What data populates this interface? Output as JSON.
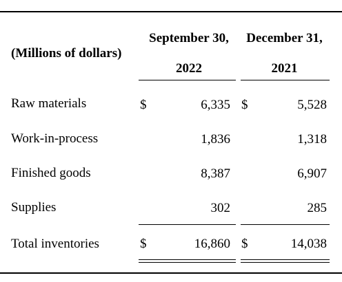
{
  "table": {
    "stub_header": "(Millions of dollars)",
    "columns": [
      {
        "line1": "September 30,",
        "line2": "2022"
      },
      {
        "line1": "December 31,",
        "line2": "2021"
      }
    ],
    "rows": [
      {
        "label": "Raw materials",
        "c1_symbol": "$",
        "c1": "6,335",
        "c2_symbol": "$",
        "c2": "5,528"
      },
      {
        "label": "Work-in-process",
        "c1_symbol": "",
        "c1": "1,836",
        "c2_symbol": "",
        "c2": "1,318"
      },
      {
        "label": "Finished goods",
        "c1_symbol": "",
        "c1": "8,387",
        "c2_symbol": "",
        "c2": "6,907"
      },
      {
        "label": "Supplies",
        "c1_symbol": "",
        "c1": "302",
        "c2_symbol": "",
        "c2": "285"
      }
    ],
    "total": {
      "label": "Total inventories",
      "c1_symbol": "$",
      "c1": "16,860",
      "c2_symbol": "$",
      "c2": "14,038"
    }
  }
}
